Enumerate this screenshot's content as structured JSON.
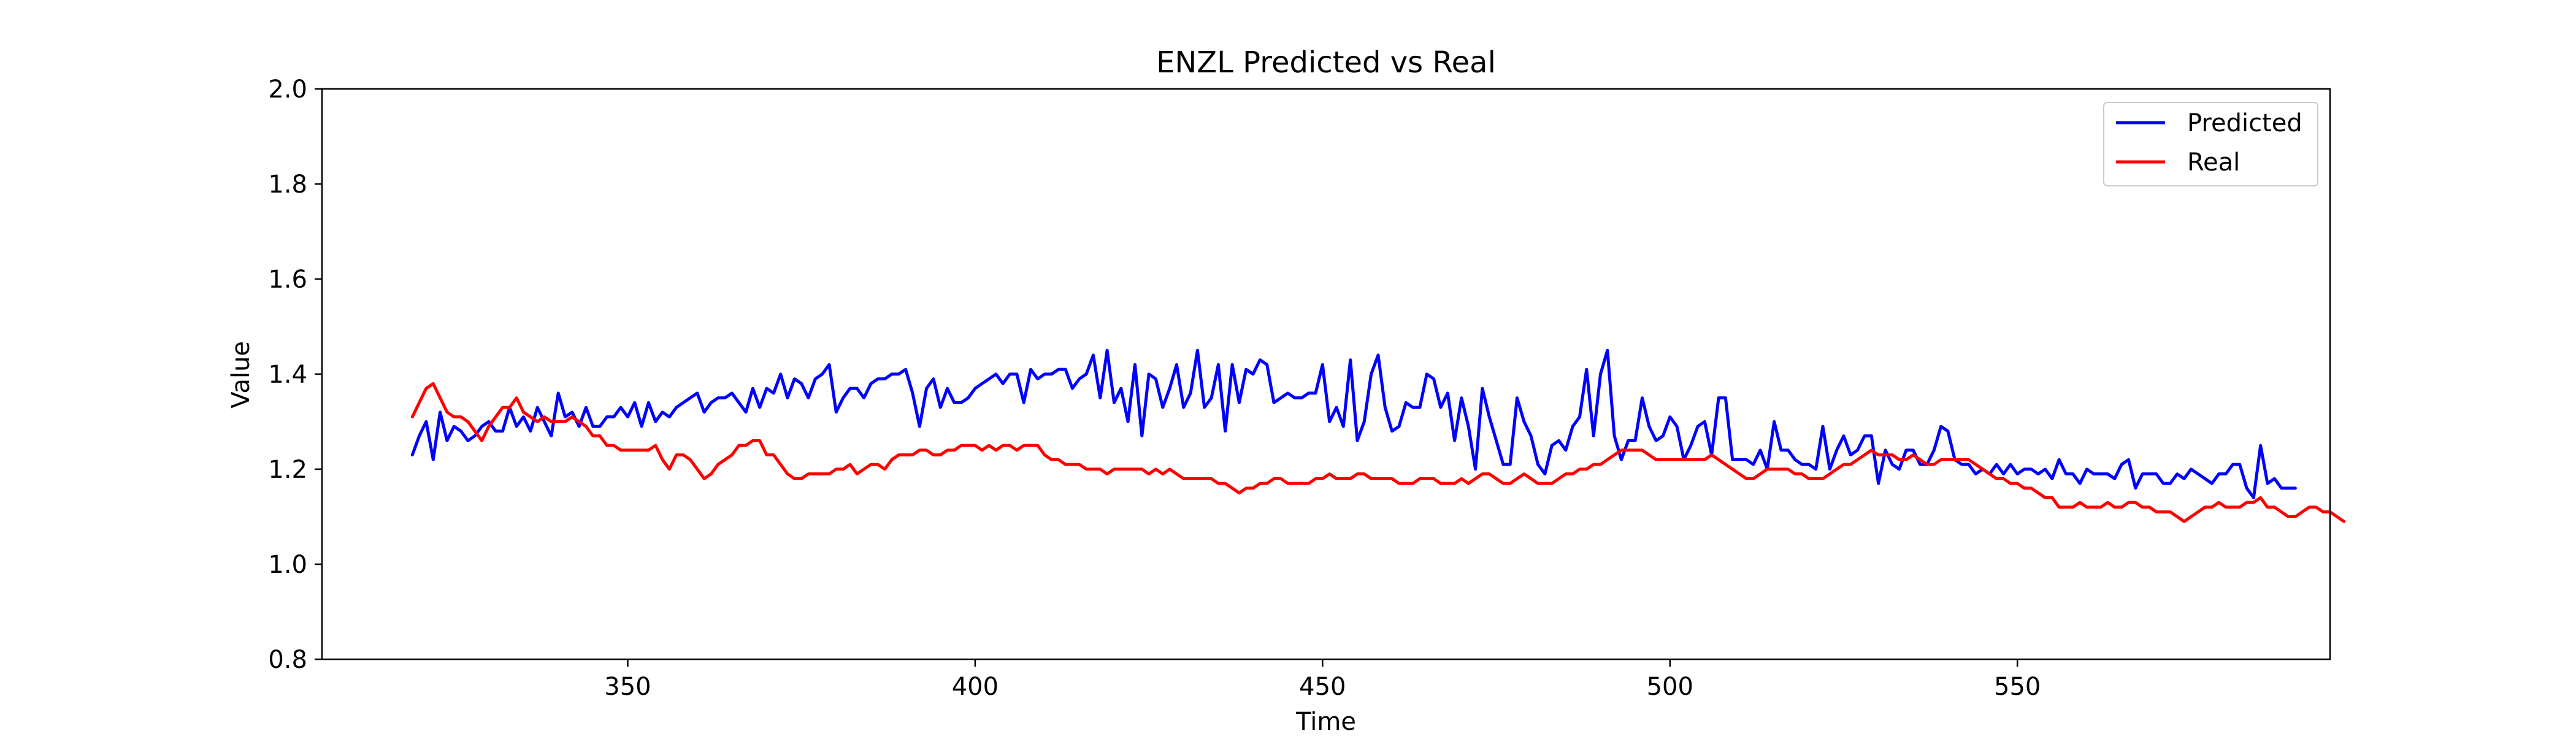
{
  "chart_data": {
    "type": "line",
    "title": "ENZL Predicted vs Real",
    "xlabel": "Time",
    "ylabel": "Value",
    "xlim": [
      306,
      595
    ],
    "ylim": [
      0.8,
      2.0
    ],
    "xticks": [
      350,
      400,
      450,
      500,
      550
    ],
    "yticks": [
      0.8,
      1.0,
      1.2,
      1.4,
      1.6,
      1.8,
      2.0
    ],
    "xtick_labels": [
      "350",
      "400",
      "450",
      "500",
      "550"
    ],
    "ytick_labels": [
      "0.8",
      "1.0",
      "1.2",
      "1.4",
      "1.6",
      "1.8",
      "2.0"
    ],
    "grid": false,
    "legend_position": "top-right",
    "x_start": 319,
    "x_step": 1,
    "series": [
      {
        "name": "Predicted",
        "color": "#0000ff",
        "values": [
          1.23,
          1.27,
          1.3,
          1.22,
          1.32,
          1.26,
          1.29,
          1.28,
          1.26,
          1.27,
          1.29,
          1.3,
          1.28,
          1.28,
          1.33,
          1.29,
          1.31,
          1.28,
          1.33,
          1.3,
          1.27,
          1.36,
          1.31,
          1.32,
          1.29,
          1.33,
          1.29,
          1.29,
          1.31,
          1.31,
          1.33,
          1.31,
          1.34,
          1.29,
          1.34,
          1.3,
          1.32,
          1.31,
          1.33,
          1.34,
          1.35,
          1.36,
          1.32,
          1.34,
          1.35,
          1.35,
          1.36,
          1.34,
          1.32,
          1.37,
          1.33,
          1.37,
          1.36,
          1.4,
          1.35,
          1.39,
          1.38,
          1.35,
          1.39,
          1.4,
          1.42,
          1.32,
          1.35,
          1.37,
          1.37,
          1.35,
          1.38,
          1.39,
          1.39,
          1.4,
          1.4,
          1.41,
          1.36,
          1.29,
          1.37,
          1.39,
          1.33,
          1.37,
          1.34,
          1.34,
          1.35,
          1.37,
          1.38,
          1.39,
          1.4,
          1.38,
          1.4,
          1.4,
          1.34,
          1.41,
          1.39,
          1.4,
          1.4,
          1.41,
          1.41,
          1.37,
          1.39,
          1.4,
          1.44,
          1.35,
          1.45,
          1.34,
          1.37,
          1.3,
          1.42,
          1.27,
          1.4,
          1.39,
          1.33,
          1.37,
          1.42,
          1.33,
          1.36,
          1.45,
          1.33,
          1.35,
          1.42,
          1.28,
          1.42,
          1.34,
          1.41,
          1.4,
          1.43,
          1.42,
          1.34,
          1.35,
          1.36,
          1.35,
          1.35,
          1.36,
          1.36,
          1.42,
          1.3,
          1.33,
          1.29,
          1.43,
          1.26,
          1.3,
          1.4,
          1.44,
          1.33,
          1.28,
          1.29,
          1.34,
          1.33,
          1.33,
          1.4,
          1.39,
          1.33,
          1.36,
          1.26,
          1.35,
          1.29,
          1.2,
          1.37,
          1.31,
          1.26,
          1.21,
          1.21,
          1.35,
          1.3,
          1.27,
          1.21,
          1.19,
          1.25,
          1.26,
          1.24,
          1.29,
          1.31,
          1.41,
          1.27,
          1.4,
          1.45,
          1.27,
          1.22,
          1.26,
          1.26,
          1.35,
          1.29,
          1.26,
          1.27,
          1.31,
          1.29,
          1.22,
          1.25,
          1.29,
          1.3,
          1.23,
          1.35,
          1.35,
          1.22,
          1.22,
          1.22,
          1.21,
          1.24,
          1.2,
          1.3,
          1.24,
          1.24,
          1.22,
          1.21,
          1.21,
          1.2,
          1.29,
          1.2,
          1.24,
          1.27,
          1.23,
          1.24,
          1.27,
          1.27,
          1.17,
          1.24,
          1.21,
          1.2,
          1.24,
          1.24,
          1.21,
          1.21,
          1.24,
          1.29,
          1.28,
          1.22,
          1.21,
          1.21,
          1.19,
          1.2,
          1.19,
          1.21,
          1.19,
          1.21,
          1.19,
          1.2,
          1.2,
          1.19,
          1.2,
          1.18,
          1.22,
          1.19,
          1.19,
          1.17,
          1.2,
          1.19,
          1.19,
          1.19,
          1.18,
          1.21,
          1.22,
          1.16,
          1.19,
          1.19,
          1.19,
          1.17,
          1.17,
          1.19,
          1.18,
          1.2,
          1.19,
          1.18,
          1.17,
          1.19,
          1.19,
          1.21,
          1.21,
          1.16,
          1.14,
          1.25,
          1.17,
          1.18,
          1.16,
          1.16,
          1.16
        ]
      },
      {
        "name": "Real",
        "color": "#ff0000",
        "values": [
          1.31,
          1.34,
          1.37,
          1.38,
          1.35,
          1.32,
          1.31,
          1.31,
          1.3,
          1.28,
          1.26,
          1.29,
          1.31,
          1.33,
          1.33,
          1.35,
          1.32,
          1.31,
          1.3,
          1.31,
          1.3,
          1.3,
          1.3,
          1.31,
          1.3,
          1.29,
          1.27,
          1.27,
          1.25,
          1.25,
          1.24,
          1.24,
          1.24,
          1.24,
          1.24,
          1.25,
          1.22,
          1.2,
          1.23,
          1.23,
          1.22,
          1.2,
          1.18,
          1.19,
          1.21,
          1.22,
          1.23,
          1.25,
          1.25,
          1.26,
          1.26,
          1.23,
          1.23,
          1.21,
          1.19,
          1.18,
          1.18,
          1.19,
          1.19,
          1.19,
          1.19,
          1.2,
          1.2,
          1.21,
          1.19,
          1.2,
          1.21,
          1.21,
          1.2,
          1.22,
          1.23,
          1.23,
          1.23,
          1.24,
          1.24,
          1.23,
          1.23,
          1.24,
          1.24,
          1.25,
          1.25,
          1.25,
          1.24,
          1.25,
          1.24,
          1.25,
          1.25,
          1.24,
          1.25,
          1.25,
          1.25,
          1.23,
          1.22,
          1.22,
          1.21,
          1.21,
          1.21,
          1.2,
          1.2,
          1.2,
          1.19,
          1.2,
          1.2,
          1.2,
          1.2,
          1.2,
          1.19,
          1.2,
          1.19,
          1.2,
          1.19,
          1.18,
          1.18,
          1.18,
          1.18,
          1.18,
          1.17,
          1.17,
          1.16,
          1.15,
          1.16,
          1.16,
          1.17,
          1.17,
          1.18,
          1.18,
          1.17,
          1.17,
          1.17,
          1.17,
          1.18,
          1.18,
          1.19,
          1.18,
          1.18,
          1.18,
          1.19,
          1.19,
          1.18,
          1.18,
          1.18,
          1.18,
          1.17,
          1.17,
          1.17,
          1.18,
          1.18,
          1.18,
          1.17,
          1.17,
          1.17,
          1.18,
          1.17,
          1.18,
          1.19,
          1.19,
          1.18,
          1.17,
          1.17,
          1.18,
          1.19,
          1.18,
          1.17,
          1.17,
          1.17,
          1.18,
          1.19,
          1.19,
          1.2,
          1.2,
          1.21,
          1.21,
          1.22,
          1.23,
          1.24,
          1.24,
          1.24,
          1.24,
          1.23,
          1.22,
          1.22,
          1.22,
          1.22,
          1.22,
          1.22,
          1.22,
          1.22,
          1.23,
          1.22,
          1.21,
          1.2,
          1.19,
          1.18,
          1.18,
          1.19,
          1.2,
          1.2,
          1.2,
          1.2,
          1.19,
          1.19,
          1.18,
          1.18,
          1.18,
          1.19,
          1.2,
          1.21,
          1.21,
          1.22,
          1.23,
          1.24,
          1.23,
          1.23,
          1.23,
          1.22,
          1.22,
          1.23,
          1.22,
          1.21,
          1.21,
          1.22,
          1.22,
          1.22,
          1.22,
          1.22,
          1.21,
          1.2,
          1.19,
          1.18,
          1.18,
          1.17,
          1.17,
          1.16,
          1.16,
          1.15,
          1.14,
          1.14,
          1.12,
          1.12,
          1.12,
          1.13,
          1.12,
          1.12,
          1.12,
          1.13,
          1.12,
          1.12,
          1.13,
          1.13,
          1.12,
          1.12,
          1.11,
          1.11,
          1.11,
          1.1,
          1.09,
          1.1,
          1.11,
          1.12,
          1.12,
          1.13,
          1.12,
          1.12,
          1.12,
          1.13,
          1.13,
          1.14,
          1.12,
          1.12,
          1.11,
          1.1,
          1.1,
          1.11,
          1.12,
          1.12,
          1.11,
          1.11,
          1.1,
          1.09
        ]
      }
    ]
  }
}
